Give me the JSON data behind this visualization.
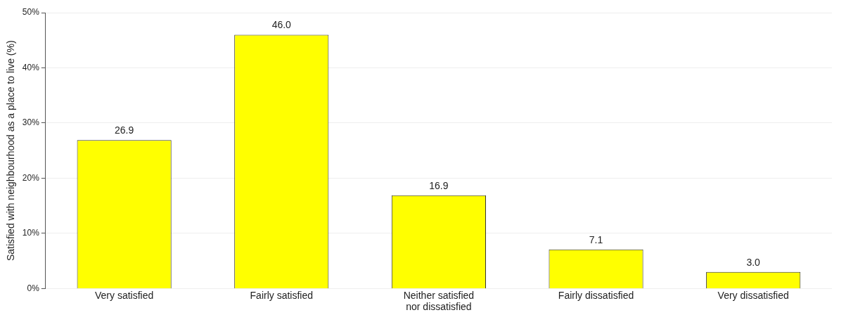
{
  "chart_data": {
    "type": "bar",
    "ylabel": "Satisfied with neighbourhood as a place to live (%)",
    "categories": [
      "Very satisfied",
      "Fairly satisfied",
      "Neither satisfied nor dissatisfied",
      "Fairly dissatisfied",
      "Very dissatisfied"
    ],
    "values": [
      26.9,
      46.0,
      16.9,
      7.1,
      3.0
    ],
    "value_labels": [
      "26.9",
      "46.0",
      "16.9",
      "7.1",
      "3.0"
    ],
    "color": "#ffff00",
    "ylim": [
      0,
      50
    ],
    "yticks": [
      {
        "value": 0,
        "label": "0%"
      },
      {
        "value": 10,
        "label": "10%"
      },
      {
        "value": 20,
        "label": "20%"
      },
      {
        "value": 30,
        "label": "30%"
      },
      {
        "value": 40,
        "label": "40%"
      },
      {
        "value": 50,
        "label": "50%"
      }
    ],
    "grid": "y",
    "legend": false
  }
}
